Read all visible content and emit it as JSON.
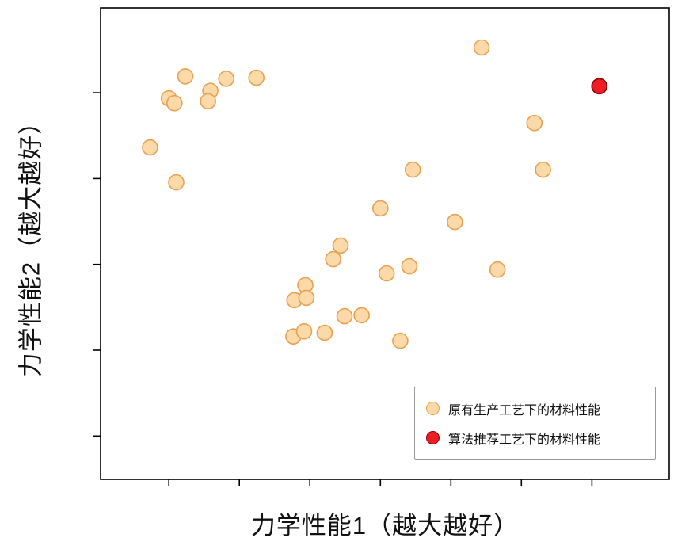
{
  "chart_data": {
    "type": "scatter",
    "title": "",
    "xlabel": "力学性能1（越大越好）",
    "ylabel": "力学性能2（越大越好）",
    "xlim": [
      0,
      10
    ],
    "ylim": [
      0,
      10
    ],
    "x_ticks": [
      1.2,
      2.44,
      3.68,
      4.92,
      6.16,
      7.4,
      8.64
    ],
    "y_ticks": [
      0.92,
      2.74,
      4.56,
      6.38,
      8.2
    ],
    "tick_labels_shown": false,
    "grid": false,
    "legend_position": "lower right",
    "frame_color": "#000000",
    "series": [
      {
        "name": "原有生产工艺下的材料性能",
        "marker_fill": "#FBD9A8",
        "marker_edge": "#E9A050",
        "points": [
          [
            6.7,
            9.16
          ],
          [
            1.49,
            8.55
          ],
          [
            2.21,
            8.5
          ],
          [
            2.74,
            8.52
          ],
          [
            1.93,
            8.24
          ],
          [
            1.2,
            8.08
          ],
          [
            1.3,
            7.98
          ],
          [
            1.89,
            8.02
          ],
          [
            0.87,
            7.04
          ],
          [
            7.63,
            7.56
          ],
          [
            1.33,
            6.3
          ],
          [
            5.49,
            6.57
          ],
          [
            7.78,
            6.57
          ],
          [
            4.92,
            5.75
          ],
          [
            6.23,
            5.46
          ],
          [
            4.22,
            4.96
          ],
          [
            4.09,
            4.67
          ],
          [
            5.03,
            4.37
          ],
          [
            5.43,
            4.52
          ],
          [
            6.98,
            4.45
          ],
          [
            3.6,
            4.12
          ],
          [
            3.41,
            3.8
          ],
          [
            3.62,
            3.85
          ],
          [
            4.29,
            3.46
          ],
          [
            4.59,
            3.48
          ],
          [
            3.39,
            3.03
          ],
          [
            3.58,
            3.14
          ],
          [
            3.94,
            3.11
          ],
          [
            5.27,
            2.94
          ]
        ]
      },
      {
        "name": "算法推荐工艺下的材料性能",
        "marker_fill": "#EE1C25",
        "marker_edge": "#8E0000",
        "points": [
          [
            8.77,
            8.34
          ]
        ]
      }
    ]
  }
}
